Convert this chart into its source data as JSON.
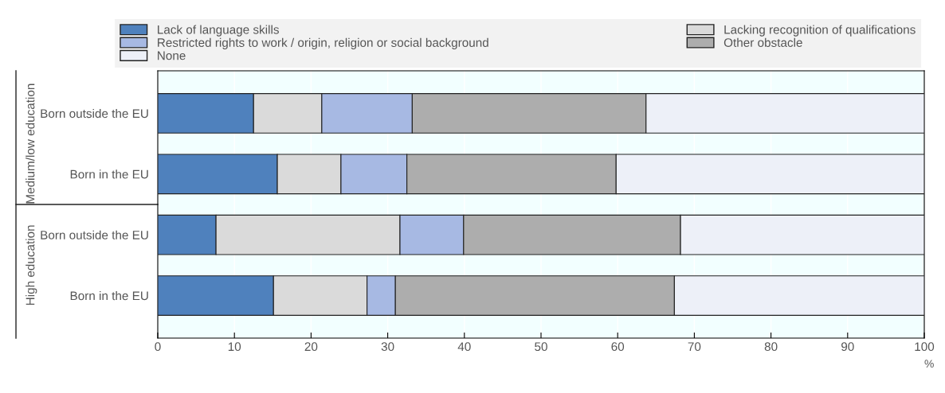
{
  "chart_data": {
    "type": "bar",
    "orientation": "horizontal",
    "stacked": true,
    "categories": [
      "Born outside the EU",
      "Born in the EU",
      "Born outside the EU",
      "Born in the EU"
    ],
    "series": [
      {
        "name": "Lack of language skills",
        "color": "#4f81bd",
        "values": [
          12.5,
          15.6,
          7.6,
          15.1
        ]
      },
      {
        "name": "Lacking recognition of qualifications",
        "color": "#dadada",
        "values": [
          8.9,
          8.3,
          24.0,
          12.2
        ]
      },
      {
        "name": "Restricted rights to work / origin, religion or social background",
        "color": "#a7b9e3",
        "values": [
          11.8,
          8.6,
          8.3,
          3.7
        ]
      },
      {
        "name": "Other obstacle",
        "color": "#adadad",
        "values": [
          30.5,
          27.3,
          28.3,
          36.4
        ]
      },
      {
        "name": "None",
        "color": "#edf0f8",
        "values": [
          36.3,
          40.2,
          31.8,
          32.6
        ]
      }
    ],
    "xlabel": "%",
    "xlim": [
      0,
      100
    ],
    "xticks": [
      0,
      10,
      20,
      30,
      40,
      50,
      60,
      70,
      80,
      90,
      100
    ],
    "annotations": [
      "Medium/low education",
      "High education"
    ],
    "grid": "x",
    "legend": "top"
  }
}
